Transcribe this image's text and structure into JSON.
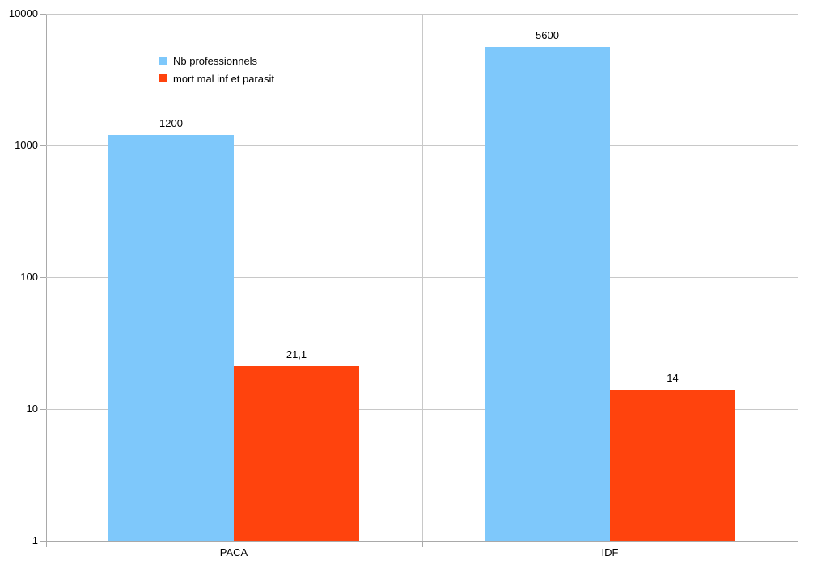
{
  "chart_data": {
    "type": "bar",
    "title": "",
    "xlabel": "",
    "ylabel": "",
    "categories": [
      "PACA",
      "IDF"
    ],
    "series": [
      {
        "name": "Nb professionnels",
        "color": "#7EC8FB",
        "values": [
          1200,
          5600
        ],
        "value_labels": [
          "1200",
          "5600"
        ]
      },
      {
        "name": "mort mal inf et parasit",
        "color": "#FF430D",
        "values": [
          21.1,
          14
        ],
        "value_labels": [
          "21,1",
          "14"
        ]
      }
    ],
    "y_axis": {
      "scale": "log",
      "min": 1,
      "max": 10000,
      "ticks": [
        1,
        10,
        100,
        1000,
        10000
      ],
      "tick_labels": [
        "1",
        "10",
        "100",
        "1000",
        "10000"
      ]
    },
    "grid": true,
    "legend_position": "top-left-inside",
    "background": "#FFFFFF"
  },
  "colors": {
    "gridline": "#C8C8C8",
    "axis": "#A9A9A9",
    "text": "#000000",
    "background": "#FFFFFF"
  }
}
